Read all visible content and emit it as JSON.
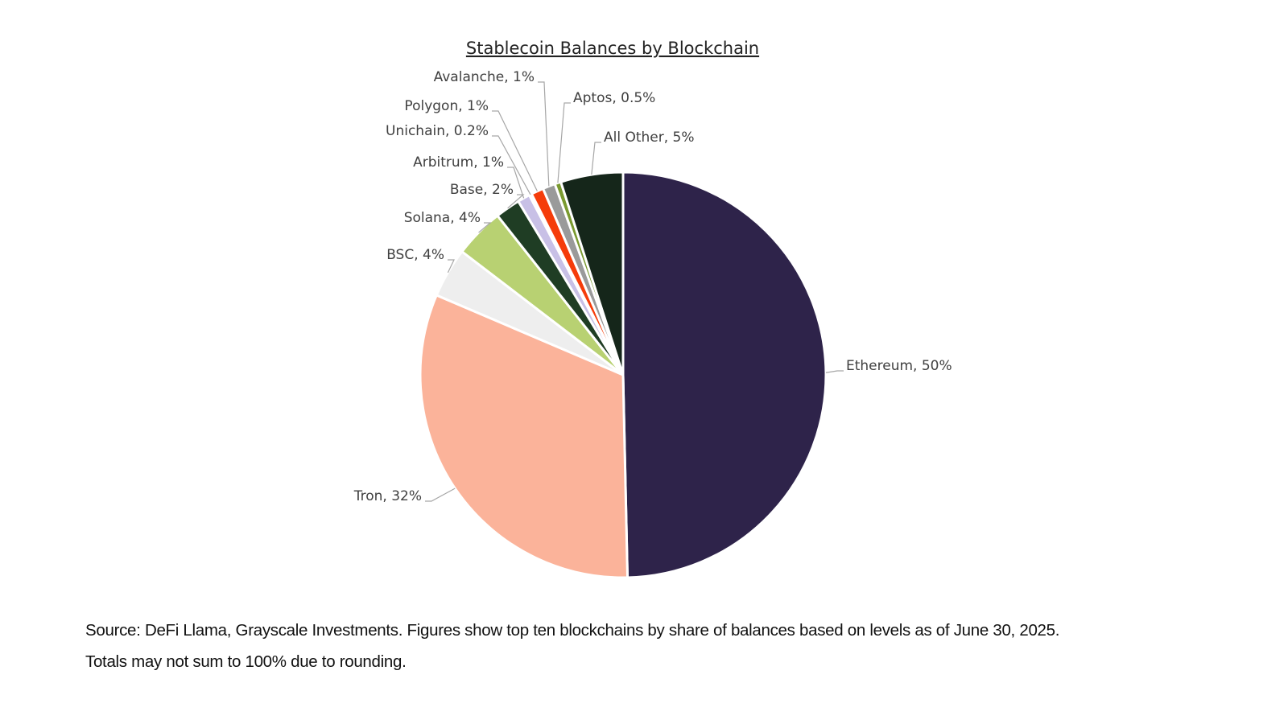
{
  "chart_data": {
    "type": "pie",
    "title": "Stablecoin Balances by Blockchain",
    "slices": [
      {
        "label": "Ethereum",
        "value": 50,
        "display": "Ethereum, 50%",
        "color": "#2e234a"
      },
      {
        "label": "Tron",
        "value": 32,
        "display": "Tron, 32%",
        "color": "#fbb39a"
      },
      {
        "label": "BSC",
        "value": 4,
        "display": "BSC, 4%",
        "color": "#eeeeee"
      },
      {
        "label": "Solana",
        "value": 4,
        "display": "Solana, 4%",
        "color": "#b8d172"
      },
      {
        "label": "Base",
        "value": 2,
        "display": "Base, 2%",
        "color": "#1f3d24"
      },
      {
        "label": "Arbitrum",
        "value": 1,
        "display": "Arbitrum, 1%",
        "color": "#c8c0e6"
      },
      {
        "label": "Unichain",
        "value": 0.2,
        "display": "Unichain, 0.2%",
        "color": "#f4f0fa"
      },
      {
        "label": "Polygon",
        "value": 1,
        "display": "Polygon, 1%",
        "color": "#f53c0a"
      },
      {
        "label": "Avalanche",
        "value": 1,
        "display": "Avalanche, 1%",
        "color": "#9a9a9a"
      },
      {
        "label": "Aptos",
        "value": 0.5,
        "display": "Aptos, 0.5%",
        "color": "#7a9a30"
      },
      {
        "label": "All Other",
        "value": 5,
        "display": "All Other, 5%",
        "color": "#15261a"
      }
    ]
  },
  "footnote": {
    "line1": "Source: DeFi Llama, Grayscale Investments. Figures show top ten blockchains by share of balances based on levels as of June 30, 2025.",
    "line2": "Totals may not sum to 100% due to rounding."
  }
}
